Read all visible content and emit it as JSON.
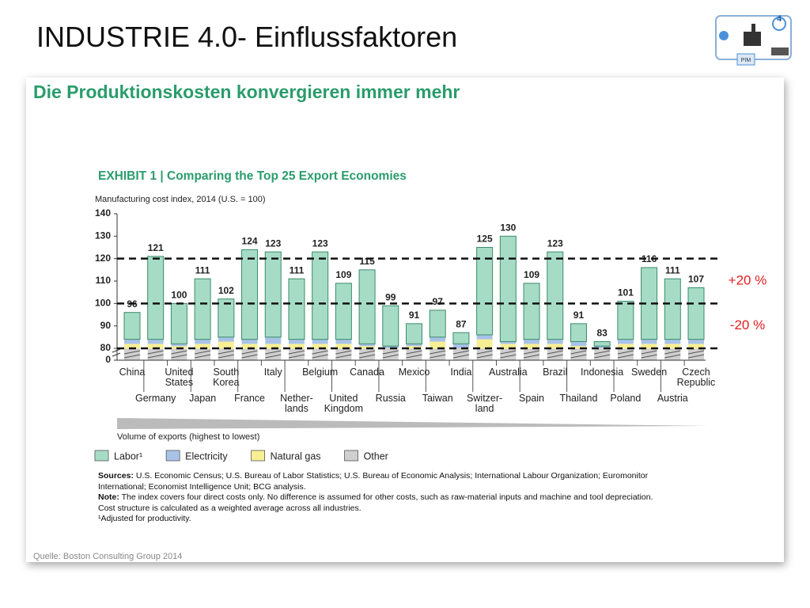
{
  "slide": {
    "title": "INDUSTRIE 4.0- Einflussfaktoren",
    "subtitle": "Die Produktionskosten konvergieren immer mehr",
    "source": "Quelle: Boston Consulting Group 2014",
    "logo_label": "PIM",
    "logo_number": "4"
  },
  "chart_data": {
    "type": "bar",
    "stacked": true,
    "title": "EXHIBIT 1 | Comparing the Top 25 Export Economies",
    "y_label": "Manufacturing cost index, 2014 (U.S. = 100)",
    "categories": [
      "China",
      "Germany",
      "United\nStates",
      "Japan",
      "South\nKorea",
      "France",
      "Italy",
      "Nether-\nlands",
      "Belgium",
      "United\nKingdom",
      "Canada",
      "Russia",
      "Mexico",
      "Taiwan",
      "India",
      "Switzer-\nland",
      "Australia",
      "Spain",
      "Brazil",
      "Thailand",
      "Indonesia",
      "Poland",
      "Sweden",
      "Austria",
      "Czech\nRepublic"
    ],
    "series": [
      {
        "name": "Labor¹",
        "color": "#a6dcc6",
        "values": [
          12,
          37,
          18,
          27,
          17,
          40,
          38,
          27,
          39,
          25,
          33,
          18,
          9,
          12,
          5,
          39,
          47,
          25,
          39,
          8,
          2,
          17,
          32,
          27,
          23
        ]
      },
      {
        "name": "Electricity",
        "color": "#a9c3e8",
        "values": [
          2,
          2,
          1,
          2,
          2,
          2,
          3,
          2,
          2,
          2,
          1,
          1,
          1,
          2,
          2,
          2,
          1,
          2,
          2,
          2,
          1,
          2,
          2,
          2,
          2
        ]
      },
      {
        "name": "Natural gas",
        "color": "#f8ef94",
        "values": [
          4,
          4,
          3,
          4,
          5,
          4,
          4,
          4,
          4,
          4,
          3,
          2,
          3,
          5,
          2,
          6,
          4,
          4,
          4,
          3,
          2,
          4,
          4,
          4,
          4
        ]
      },
      {
        "name": "Other",
        "color": "#cfcfcf",
        "values": [
          78,
          78,
          78,
          78,
          78,
          78,
          78,
          78,
          78,
          78,
          78,
          78,
          78,
          78,
          78,
          78,
          78,
          78,
          78,
          78,
          78,
          78,
          78,
          78,
          78
        ]
      }
    ],
    "totals": [
      96,
      121,
      100,
      111,
      102,
      124,
      123,
      111,
      123,
      109,
      115,
      99,
      91,
      97,
      87,
      125,
      130,
      109,
      123,
      91,
      83,
      101,
      116,
      111,
      107
    ],
    "ylim": [
      0,
      140
    ],
    "axis_break": [
      0,
      80
    ],
    "yticks": [
      0,
      80,
      90,
      100,
      110,
      120,
      130,
      140
    ],
    "reference_lines": [
      120,
      100,
      80
    ],
    "annotations": [
      "+20 %",
      "-20 %"
    ],
    "x_note": "Volume of exports (highest to lowest)",
    "sources_label": "Sources:",
    "sources": "U.S. Economic Census; U.S. Bureau of Labor Statistics; U.S. Bureau of Economic Analysis; International Labour Organization; Euromonitor International; Economist Intelligence Unit; BCG analysis.",
    "note_label": "Note:",
    "note": "The index covers four direct costs only. No difference is assumed for other costs, such as raw-material inputs and machine and tool depreciation. Cost structure is calculated as a weighted average across all industries.",
    "footnote": "¹Adjusted for productivity."
  }
}
